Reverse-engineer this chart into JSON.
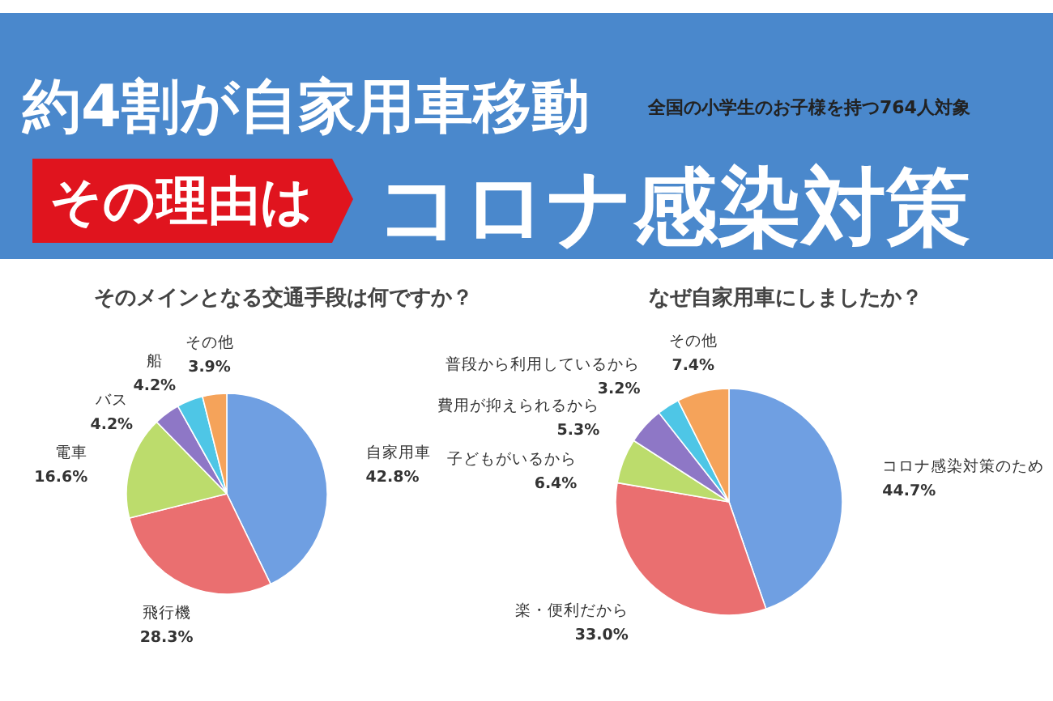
{
  "chart_data": [
    {
      "type": "other",
      "title": "約4割が自家用車移動",
      "subtitle": "全国の小学生のお子様を持つ764人対象",
      "annotations": [
        "その理由は",
        "コロナ感染対策"
      ]
    },
    {
      "type": "pie",
      "title": "そのメインとなる交通手段は何ですか？",
      "categories": [
        "自家用車",
        "飛行機",
        "電車",
        "バス",
        "船",
        "その他"
      ],
      "values": [
        42.8,
        28.3,
        16.6,
        4.2,
        4.2,
        3.9
      ],
      "value_labels": [
        "42.8%",
        "28.3%",
        "16.6%",
        "4.2%",
        "4.2%",
        "3.9%"
      ],
      "colors": [
        "#6f9fe2",
        "#ea6f70",
        "#bcdc6c",
        "#8e77c6",
        "#4ec6e6",
        "#f5a35a"
      ]
    },
    {
      "type": "pie",
      "title": "なぜ自家用車にしましたか？",
      "categories": [
        "コロナ感染対策のため",
        "楽・便利だから",
        "子どもがいるから",
        "費用が抑えられるから",
        "普段から利用しているから",
        "その他"
      ],
      "values": [
        44.7,
        33.0,
        6.4,
        5.3,
        3.2,
        7.4
      ],
      "value_labels": [
        "44.7%",
        "33.0%",
        "6.4%",
        "5.3%",
        "3.2%",
        "7.4%"
      ],
      "colors": [
        "#6f9fe2",
        "#ea6f70",
        "#bcdc6c",
        "#8e77c6",
        "#4ec6e6",
        "#f5a35a"
      ]
    }
  ]
}
